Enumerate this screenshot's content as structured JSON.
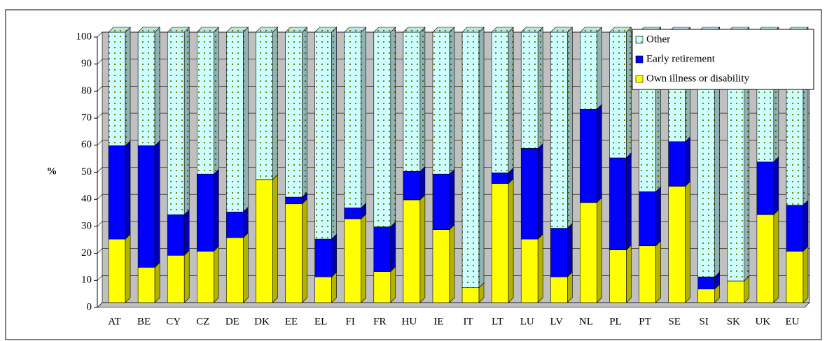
{
  "chart_data": {
    "type": "bar",
    "stacked": true,
    "ylabel": "%",
    "categories": [
      "AT",
      "BE",
      "CY",
      "CZ",
      "DE",
      "DK",
      "EE",
      "EL",
      "FI",
      "FR",
      "HU",
      "IE",
      "IT",
      "LT",
      "LU",
      "LV",
      "NL",
      "PL",
      "PT",
      "SE",
      "SI",
      "SK",
      "UK",
      "EU"
    ],
    "series": [
      {
        "name": "Own illness or disability",
        "color": "#ffff00",
        "values": [
          23.5,
          13,
          17.5,
          19,
          24,
          45.5,
          36.5,
          9.5,
          31,
          11.5,
          38,
          27,
          5.5,
          44,
          23.5,
          9.5,
          37,
          19.5,
          21,
          43,
          5,
          8,
          32.5,
          19
        ]
      },
      {
        "name": "Early retirement",
        "color": "#0000ff",
        "values": [
          34.5,
          45,
          15,
          28.5,
          9.5,
          0,
          2.5,
          14,
          4,
          16.5,
          10.5,
          20.5,
          0,
          4,
          33.5,
          18,
          34.5,
          34,
          20,
          16.5,
          4.5,
          0,
          19.5,
          17
        ]
      },
      {
        "name": "Other",
        "color": "#ccffff",
        "hatch_color": "#808000",
        "values": [
          42,
          42,
          67.5,
          52.5,
          66.5,
          54.5,
          61,
          76.5,
          65,
          72,
          51.5,
          52.5,
          94.5,
          52,
          43,
          72.5,
          28.5,
          46.5,
          59,
          40.5,
          90.5,
          92,
          48,
          64
        ]
      }
    ],
    "ylim": [
      0,
      100
    ],
    "yticks": [
      0,
      10,
      20,
      30,
      40,
      50,
      60,
      70,
      80,
      90,
      100
    ],
    "grid": true,
    "legend": "upper right"
  }
}
